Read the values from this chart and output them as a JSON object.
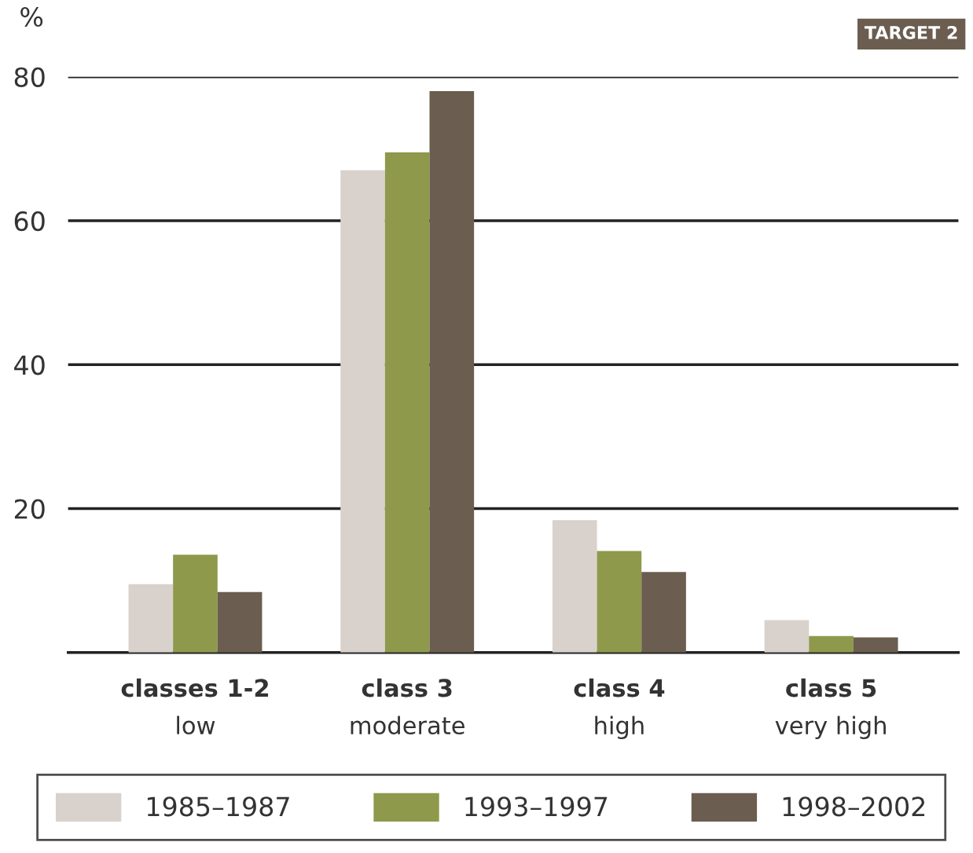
{
  "chart_data": {
    "type": "bar",
    "ylabel": "%",
    "annotations": [
      "TARGET 2"
    ],
    "categories": [
      "classes 1-2\nlow",
      "class 3\nmoderate",
      "class 4\nhigh",
      "class 5\nvery high"
    ],
    "series": [
      {
        "name": "1985–1987",
        "color": "#d9d1cb",
        "values": [
          9.5,
          67.0,
          18.4,
          4.5
        ]
      },
      {
        "name": "1993–1997",
        "color": "#8e994b",
        "values": [
          13.6,
          69.5,
          14.1,
          2.3
        ]
      },
      {
        "name": "1998–2002",
        "color": "#6b5d4f",
        "values": [
          8.4,
          78.0,
          11.2,
          2.1
        ]
      }
    ],
    "ylim": [
      0,
      80
    ],
    "yticks": [
      {
        "value": 0,
        "label": null
      },
      20,
      40,
      60,
      80
    ],
    "grid": "y",
    "legend": "bottom"
  }
}
